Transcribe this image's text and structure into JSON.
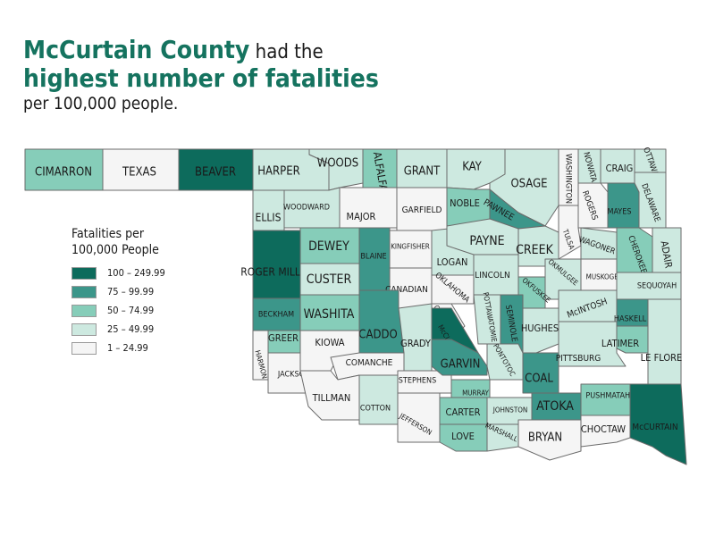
{
  "headline": {
    "county": "McCurtain County",
    "had_the": " had the",
    "highest": "highest number of fatalities",
    "per": "per 100,000 people."
  },
  "legend": {
    "title_line1": "Fatalities per",
    "title_line2": "100,000 People",
    "bins": [
      {
        "label": "100 – 249.99",
        "color": "#0d6b5c"
      },
      {
        "label": "75 – 99.99",
        "color": "#3c968a"
      },
      {
        "label": "50 – 74.99",
        "color": "#86cdb9"
      },
      {
        "label": "25 – 49.99",
        "color": "#cde9e0"
      },
      {
        "label": "1 – 24.99",
        "color": "#f5f5f5"
      }
    ]
  },
  "counties": [
    {
      "name": "CIMARRON",
      "bin": 2
    },
    {
      "name": "TEXAS",
      "bin": 4
    },
    {
      "name": "BEAVER",
      "bin": 0
    },
    {
      "name": "HARPER",
      "bin": 3
    },
    {
      "name": "WOODS",
      "bin": 3
    },
    {
      "name": "ALFALFA",
      "bin": 2
    },
    {
      "name": "GRANT",
      "bin": 3
    },
    {
      "name": "KAY",
      "bin": 3
    },
    {
      "name": "OSAGE",
      "bin": 3
    },
    {
      "name": "WASHINGTON",
      "bin": 4
    },
    {
      "name": "NOWATA",
      "bin": 3
    },
    {
      "name": "CRAIG",
      "bin": 3
    },
    {
      "name": "OTTAWA",
      "bin": 3
    },
    {
      "name": "ELLIS",
      "bin": 3
    },
    {
      "name": "WOODWARD",
      "bin": 3
    },
    {
      "name": "MAJOR",
      "bin": 4
    },
    {
      "name": "GARFIELD",
      "bin": 4
    },
    {
      "name": "NOBLE",
      "bin": 2
    },
    {
      "name": "PAWNEE",
      "bin": 1
    },
    {
      "name": "ROGERS",
      "bin": 4
    },
    {
      "name": "MAYES",
      "bin": 1
    },
    {
      "name": "DELAWARE",
      "bin": 3
    },
    {
      "name": "ROGER MILLS",
      "bin": 0
    },
    {
      "name": "DEWEY",
      "bin": 2
    },
    {
      "name": "BLAINE",
      "bin": 1
    },
    {
      "name": "KINGFISHER",
      "bin": 4
    },
    {
      "name": "LOGAN",
      "bin": 3
    },
    {
      "name": "PAYNE",
      "bin": 3
    },
    {
      "name": "CREEK",
      "bin": 3
    },
    {
      "name": "TULSA",
      "bin": 4
    },
    {
      "name": "WAGONER",
      "bin": 3
    },
    {
      "name": "CHEROKEE",
      "bin": 2
    },
    {
      "name": "ADAIR",
      "bin": 3
    },
    {
      "name": "CUSTER",
      "bin": 3
    },
    {
      "name": "CANADIAN",
      "bin": 4
    },
    {
      "name": "OKLAHOMA",
      "bin": 4
    },
    {
      "name": "LINCOLN",
      "bin": 3
    },
    {
      "name": "OKMULGEE",
      "bin": 3
    },
    {
      "name": "MUSKOGEE",
      "bin": 4
    },
    {
      "name": "SEQUOYAH",
      "bin": 3
    },
    {
      "name": "BECKHAM",
      "bin": 1
    },
    {
      "name": "WASHITA",
      "bin": 2
    },
    {
      "name": "CADDO",
      "bin": 1
    },
    {
      "name": "GRADY",
      "bin": 3
    },
    {
      "name": "CLEVELAND",
      "bin": 4
    },
    {
      "name": "McCLAIN",
      "bin": 0
    },
    {
      "name": "POTTAWATOMIE",
      "bin": 3
    },
    {
      "name": "OKFUSKEE",
      "bin": 2
    },
    {
      "name": "SEMINOLE",
      "bin": 1
    },
    {
      "name": "HUGHES",
      "bin": 3
    },
    {
      "name": "McINTOSH",
      "bin": 3
    },
    {
      "name": "HASKELL",
      "bin": 1
    },
    {
      "name": "GREER",
      "bin": 2
    },
    {
      "name": "HARMON",
      "bin": 4
    },
    {
      "name": "KIOWA",
      "bin": 4
    },
    {
      "name": "JACKSON",
      "bin": 4
    },
    {
      "name": "COMANCHE",
      "bin": 4
    },
    {
      "name": "TILLMAN",
      "bin": 4
    },
    {
      "name": "COTTON",
      "bin": 3
    },
    {
      "name": "STEPHENS",
      "bin": 4
    },
    {
      "name": "JEFFERSON",
      "bin": 4
    },
    {
      "name": "GARVIN",
      "bin": 1
    },
    {
      "name": "MURRAY",
      "bin": 2
    },
    {
      "name": "PONTOTOC",
      "bin": 3
    },
    {
      "name": "COAL",
      "bin": 1
    },
    {
      "name": "PITTSBURG",
      "bin": 3
    },
    {
      "name": "LATIMER",
      "bin": 2
    },
    {
      "name": "LE FLORE",
      "bin": 3
    },
    {
      "name": "CARTER",
      "bin": 2
    },
    {
      "name": "JOHNSTON",
      "bin": 3
    },
    {
      "name": "ATOKA",
      "bin": 1
    },
    {
      "name": "PUSHMATAHA",
      "bin": 2
    },
    {
      "name": "McCURTAIN",
      "bin": 0
    },
    {
      "name": "LOVE",
      "bin": 2
    },
    {
      "name": "MARSHALL",
      "bin": 3
    },
    {
      "name": "BRYAN",
      "bin": 4
    },
    {
      "name": "CHOCTAW",
      "bin": 4
    }
  ]
}
